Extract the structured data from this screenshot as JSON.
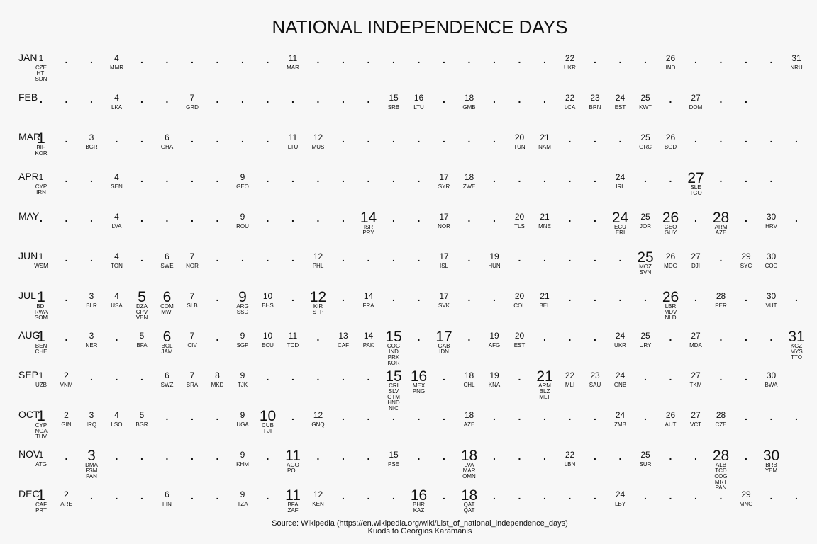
{
  "chart_data": {
    "type": "table",
    "title": "NATIONAL INDEPENDENCE DAYS",
    "caption": [
      "Source: Wikipedia (https://en.wikipedia.org/wiki/List_of_national_independence_days)",
      "Kuods to Georgios Karamanis"
    ],
    "months": [
      {
        "label": "JAN",
        "days": 31,
        "entries": [
          {
            "day": 1,
            "countries": [
              "CZE",
              "HTI",
              "SDN"
            ]
          },
          {
            "day": 4,
            "countries": [
              "MMR"
            ]
          },
          {
            "day": 11,
            "countries": [
              "MAR"
            ]
          },
          {
            "day": 22,
            "countries": [
              "UKR"
            ]
          },
          {
            "day": 26,
            "countries": [
              "IND"
            ]
          },
          {
            "day": 31,
            "countries": [
              "NRU"
            ]
          }
        ]
      },
      {
        "label": "FEB",
        "days": 29,
        "entries": [
          {
            "day": 4,
            "countries": [
              "LKA"
            ]
          },
          {
            "day": 7,
            "countries": [
              "GRD"
            ]
          },
          {
            "day": 15,
            "countries": [
              "SRB"
            ]
          },
          {
            "day": 16,
            "countries": [
              "LTU"
            ]
          },
          {
            "day": 18,
            "countries": [
              "GMB"
            ]
          },
          {
            "day": 22,
            "countries": [
              "LCA"
            ]
          },
          {
            "day": 23,
            "countries": [
              "BRN"
            ]
          },
          {
            "day": 24,
            "countries": [
              "EST"
            ]
          },
          {
            "day": 25,
            "countries": [
              "KWT"
            ]
          },
          {
            "day": 27,
            "countries": [
              "DOM"
            ]
          }
        ]
      },
      {
        "label": "MAR",
        "days": 31,
        "entries": [
          {
            "day": 1,
            "countries": [
              "BIH",
              "KOR"
            ]
          },
          {
            "day": 3,
            "countries": [
              "BGR"
            ]
          },
          {
            "day": 6,
            "countries": [
              "GHA"
            ]
          },
          {
            "day": 11,
            "countries": [
              "LTU"
            ]
          },
          {
            "day": 12,
            "countries": [
              "MUS"
            ]
          },
          {
            "day": 20,
            "countries": [
              "TUN"
            ]
          },
          {
            "day": 21,
            "countries": [
              "NAM"
            ]
          },
          {
            "day": 25,
            "countries": [
              "GRC"
            ]
          },
          {
            "day": 26,
            "countries": [
              "BGD"
            ]
          }
        ]
      },
      {
        "label": "APR",
        "days": 30,
        "entries": [
          {
            "day": 1,
            "countries": [
              "CYP",
              "IRN"
            ]
          },
          {
            "day": 4,
            "countries": [
              "SEN"
            ]
          },
          {
            "day": 9,
            "countries": [
              "GEO"
            ]
          },
          {
            "day": 17,
            "countries": [
              "SYR"
            ]
          },
          {
            "day": 18,
            "countries": [
              "ZWE"
            ]
          },
          {
            "day": 24,
            "countries": [
              "IRL"
            ]
          },
          {
            "day": 27,
            "countries": [
              "SLE",
              "TGO"
            ]
          }
        ]
      },
      {
        "label": "MAY",
        "days": 31,
        "entries": [
          {
            "day": 4,
            "countries": [
              "LVA"
            ]
          },
          {
            "day": 9,
            "countries": [
              "ROU"
            ]
          },
          {
            "day": 14,
            "countries": [
              "ISR",
              "PRY"
            ]
          },
          {
            "day": 17,
            "countries": [
              "NOR"
            ]
          },
          {
            "day": 20,
            "countries": [
              "TLS"
            ]
          },
          {
            "day": 21,
            "countries": [
              "MNE"
            ]
          },
          {
            "day": 24,
            "countries": [
              "ECU",
              "ERI"
            ]
          },
          {
            "day": 25,
            "countries": [
              "JOR"
            ]
          },
          {
            "day": 26,
            "countries": [
              "GEO",
              "GUY"
            ]
          },
          {
            "day": 28,
            "countries": [
              "ARM",
              "AZE"
            ]
          },
          {
            "day": 30,
            "countries": [
              "HRV"
            ]
          }
        ]
      },
      {
        "label": "JUN",
        "days": 30,
        "entries": [
          {
            "day": 1,
            "countries": [
              "WSM"
            ]
          },
          {
            "day": 4,
            "countries": [
              "TON"
            ]
          },
          {
            "day": 6,
            "countries": [
              "SWE"
            ]
          },
          {
            "day": 7,
            "countries": [
              "NOR"
            ]
          },
          {
            "day": 12,
            "countries": [
              "PHL"
            ]
          },
          {
            "day": 17,
            "countries": [
              "ISL"
            ]
          },
          {
            "day": 19,
            "countries": [
              "HUN"
            ]
          },
          {
            "day": 25,
            "countries": [
              "MOZ",
              "SVN"
            ]
          },
          {
            "day": 26,
            "countries": [
              "MDG"
            ]
          },
          {
            "day": 27,
            "countries": [
              "DJI"
            ]
          },
          {
            "day": 29,
            "countries": [
              "SYC"
            ]
          },
          {
            "day": 30,
            "countries": [
              "COD"
            ]
          }
        ]
      },
      {
        "label": "JUL",
        "days": 31,
        "entries": [
          {
            "day": 1,
            "countries": [
              "BDI",
              "RWA",
              "SOM"
            ]
          },
          {
            "day": 3,
            "countries": [
              "BLR"
            ]
          },
          {
            "day": 4,
            "countries": [
              "USA"
            ]
          },
          {
            "day": 5,
            "countries": [
              "DZA",
              "CPV",
              "VEN"
            ]
          },
          {
            "day": 6,
            "countries": [
              "COM",
              "MWI"
            ]
          },
          {
            "day": 7,
            "countries": [
              "SLB"
            ]
          },
          {
            "day": 9,
            "countries": [
              "ARG",
              "SSD"
            ]
          },
          {
            "day": 10,
            "countries": [
              "BHS"
            ]
          },
          {
            "day": 12,
            "countries": [
              "KIR",
              "STP"
            ]
          },
          {
            "day": 14,
            "countries": [
              "FRA"
            ]
          },
          {
            "day": 17,
            "countries": [
              "SVK"
            ]
          },
          {
            "day": 20,
            "countries": [
              "COL"
            ]
          },
          {
            "day": 21,
            "countries": [
              "BEL"
            ]
          },
          {
            "day": 26,
            "countries": [
              "LBR",
              "MDV",
              "NLD"
            ]
          },
          {
            "day": 28,
            "countries": [
              "PER"
            ]
          },
          {
            "day": 30,
            "countries": [
              "VUT"
            ]
          }
        ]
      },
      {
        "label": "AUG",
        "days": 31,
        "entries": [
          {
            "day": 1,
            "countries": [
              "BEN",
              "CHE"
            ]
          },
          {
            "day": 3,
            "countries": [
              "NER"
            ]
          },
          {
            "day": 5,
            "countries": [
              "BFA"
            ]
          },
          {
            "day": 6,
            "countries": [
              "BOL",
              "JAM"
            ]
          },
          {
            "day": 7,
            "countries": [
              "CIV"
            ]
          },
          {
            "day": 9,
            "countries": [
              "SGP"
            ]
          },
          {
            "day": 10,
            "countries": [
              "ECU"
            ]
          },
          {
            "day": 11,
            "countries": [
              "TCD"
            ]
          },
          {
            "day": 13,
            "countries": [
              "CAF"
            ]
          },
          {
            "day": 14,
            "countries": [
              "PAK"
            ]
          },
          {
            "day": 15,
            "countries": [
              "COG",
              "IND",
              "PRK",
              "KOR"
            ]
          },
          {
            "day": 17,
            "countries": [
              "GAB",
              "IDN"
            ]
          },
          {
            "day": 19,
            "countries": [
              "AFG"
            ]
          },
          {
            "day": 20,
            "countries": [
              "EST"
            ]
          },
          {
            "day": 24,
            "countries": [
              "UKR"
            ]
          },
          {
            "day": 25,
            "countries": [
              "URY"
            ]
          },
          {
            "day": 27,
            "countries": [
              "MDA"
            ]
          },
          {
            "day": 31,
            "countries": [
              "KGZ",
              "MYS",
              "TTO"
            ]
          }
        ]
      },
      {
        "label": "SEP",
        "days": 30,
        "entries": [
          {
            "day": 1,
            "countries": [
              "UZB"
            ]
          },
          {
            "day": 2,
            "countries": [
              "VNM"
            ]
          },
          {
            "day": 6,
            "countries": [
              "SWZ"
            ]
          },
          {
            "day": 7,
            "countries": [
              "BRA"
            ]
          },
          {
            "day": 8,
            "countries": [
              "MKD"
            ]
          },
          {
            "day": 9,
            "countries": [
              "TJK"
            ]
          },
          {
            "day": 15,
            "countries": [
              "CRI",
              "SLV",
              "GTM",
              "HND",
              "NIC"
            ]
          },
          {
            "day": 16,
            "countries": [
              "MEX",
              "PNG"
            ]
          },
          {
            "day": 18,
            "countries": [
              "CHL"
            ]
          },
          {
            "day": 19,
            "countries": [
              "KNA"
            ]
          },
          {
            "day": 21,
            "countries": [
              "ARM",
              "BLZ",
              "MLT"
            ]
          },
          {
            "day": 22,
            "countries": [
              "MLI"
            ]
          },
          {
            "day": 23,
            "countries": [
              "SAU"
            ]
          },
          {
            "day": 24,
            "countries": [
              "GNB"
            ]
          },
          {
            "day": 27,
            "countries": [
              "TKM"
            ]
          },
          {
            "day": 30,
            "countries": [
              "BWA"
            ]
          }
        ]
      },
      {
        "label": "OCT",
        "days": 31,
        "entries": [
          {
            "day": 1,
            "countries": [
              "CYP",
              "NGA",
              "TUV"
            ]
          },
          {
            "day": 2,
            "countries": [
              "GIN"
            ]
          },
          {
            "day": 3,
            "countries": [
              "IRQ"
            ]
          },
          {
            "day": 4,
            "countries": [
              "LSO"
            ]
          },
          {
            "day": 5,
            "countries": [
              "BGR"
            ]
          },
          {
            "day": 9,
            "countries": [
              "UGA"
            ]
          },
          {
            "day": 10,
            "countries": [
              "CUB",
              "FJI"
            ]
          },
          {
            "day": 12,
            "countries": [
              "GNQ"
            ]
          },
          {
            "day": 18,
            "countries": [
              "AZE"
            ]
          },
          {
            "day": 24,
            "countries": [
              "ZMB"
            ]
          },
          {
            "day": 26,
            "countries": [
              "AUT"
            ]
          },
          {
            "day": 27,
            "countries": [
              "VCT"
            ]
          },
          {
            "day": 28,
            "countries": [
              "CZE"
            ]
          }
        ]
      },
      {
        "label": "NOV",
        "days": 30,
        "entries": [
          {
            "day": 1,
            "countries": [
              "ATG"
            ]
          },
          {
            "day": 3,
            "countries": [
              "DMA",
              "FSM",
              "PAN"
            ]
          },
          {
            "day": 9,
            "countries": [
              "KHM"
            ]
          },
          {
            "day": 11,
            "countries": [
              "AGO",
              "POL"
            ]
          },
          {
            "day": 15,
            "countries": [
              "PSE"
            ]
          },
          {
            "day": 18,
            "countries": [
              "LVA",
              "MAR",
              "OMN"
            ]
          },
          {
            "day": 22,
            "countries": [
              "LBN"
            ]
          },
          {
            "day": 25,
            "countries": [
              "SUR"
            ]
          },
          {
            "day": 28,
            "countries": [
              "ALB",
              "TCD",
              "COG",
              "MRT",
              "PAN"
            ]
          },
          {
            "day": 30,
            "countries": [
              "BRB",
              "YEM"
            ]
          }
        ]
      },
      {
        "label": "DEC",
        "days": 31,
        "entries": [
          {
            "day": 1,
            "countries": [
              "CAF",
              "PRT"
            ]
          },
          {
            "day": 2,
            "countries": [
              "ARE"
            ]
          },
          {
            "day": 6,
            "countries": [
              "FIN"
            ]
          },
          {
            "day": 9,
            "countries": [
              "TZA"
            ]
          },
          {
            "day": 11,
            "countries": [
              "BFA",
              "ZAF"
            ]
          },
          {
            "day": 12,
            "countries": [
              "KEN"
            ]
          },
          {
            "day": 16,
            "countries": [
              "BHR",
              "KAZ"
            ]
          },
          {
            "day": 18,
            "countries": [
              "QAT",
              "QAT"
            ]
          },
          {
            "day": 24,
            "countries": [
              "LBY"
            ]
          },
          {
            "day": 29,
            "countries": [
              "MNG"
            ]
          }
        ]
      }
    ]
  }
}
